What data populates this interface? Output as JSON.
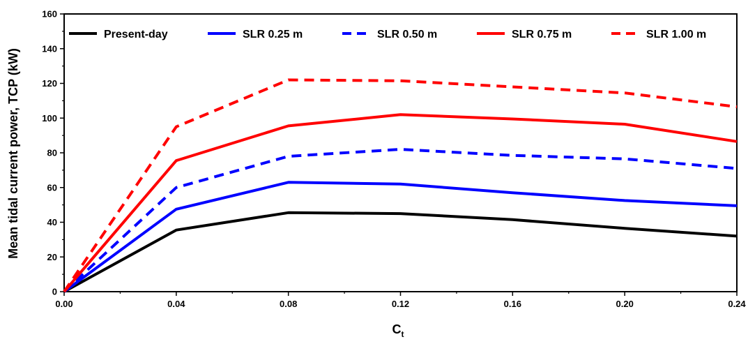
{
  "chart_data": {
    "type": "line",
    "title": "",
    "xlabel": "C",
    "xlabel_subscript": "t",
    "ylabel": "Mean tidal current power, TCP (kW)",
    "xlim": [
      0,
      0.24
    ],
    "ylim": [
      0,
      160
    ],
    "x_ticks": [
      0,
      0.04,
      0.08,
      0.12,
      0.16,
      0.2,
      0.24
    ],
    "x_tick_labels": [
      "0.00",
      "0.04",
      "0.08",
      "0.12",
      "0.16",
      "0.20",
      "0.24"
    ],
    "y_ticks": [
      0,
      20,
      40,
      60,
      80,
      100,
      120,
      140,
      160
    ],
    "y_tick_labels": [
      "0",
      "20",
      "40",
      "60",
      "80",
      "100",
      "120",
      "140",
      "160"
    ],
    "grid": false,
    "legend_position": "top",
    "x": [
      0,
      0.04,
      0.08,
      0.12,
      0.16,
      0.2,
      0.24
    ],
    "series": [
      {
        "name": "Present-day",
        "color": "#000000",
        "dash": "solid",
        "values": [
          0,
          35.5,
          45.5,
          45,
          41.5,
          36.5,
          32
        ]
      },
      {
        "name": "SLR 0.25 m",
        "color": "#0000ff",
        "dash": "solid",
        "values": [
          0,
          47.5,
          63,
          62,
          57,
          52.5,
          49.5
        ]
      },
      {
        "name": "SLR 0.50 m",
        "color": "#0000ff",
        "dash": "dashed",
        "values": [
          0,
          60,
          78,
          82,
          78.5,
          76.5,
          71
        ]
      },
      {
        "name": "SLR 0.75 m",
        "color": "#ff0000",
        "dash": "solid",
        "values": [
          0,
          75.5,
          95.5,
          102,
          99.5,
          96.5,
          86.5
        ]
      },
      {
        "name": "SLR 1.00 m",
        "color": "#ff0000",
        "dash": "dashed",
        "values": [
          0,
          95,
          122,
          121.5,
          118,
          114.5,
          106.5
        ]
      }
    ]
  }
}
